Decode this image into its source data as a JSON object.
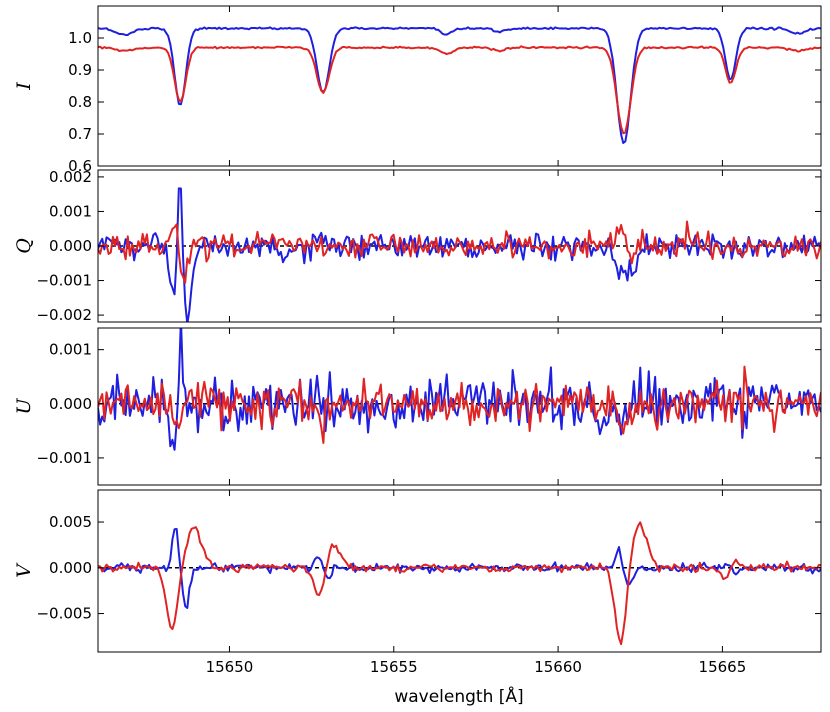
{
  "chart_data": {
    "type": "line",
    "xlabel": "wavelength [Å]",
    "xlim": [
      15646.0,
      15668.0
    ],
    "xticks": [
      15650,
      15655,
      15660,
      15665
    ],
    "xtick_labels": [
      "15650",
      "15655",
      "15660",
      "15665"
    ],
    "series_colors": {
      "blue": "#1f1fdf",
      "red": "#e02424"
    },
    "line_width": 2.0,
    "reference_line": {
      "y": 0,
      "style": "dashed",
      "color": "#000000"
    },
    "panels": [
      {
        "key": "I",
        "ylabel": "I",
        "ylim": [
          0.6,
          1.1
        ],
        "yticks": [
          0.6,
          0.7,
          0.8,
          0.9,
          1.0
        ],
        "ytick_labels": [
          "0.6",
          "0.7",
          "0.8",
          "0.9",
          "1.0"
        ],
        "zero_line": false,
        "continuum": {
          "blue": 1.03,
          "red": 0.97
        },
        "lines": [
          {
            "center": 15648.5,
            "width": 0.17,
            "depth_blue": 0.24,
            "depth_red": 0.17
          },
          {
            "center": 15652.85,
            "width": 0.19,
            "depth_blue": 0.2,
            "depth_red": 0.14
          },
          {
            "center": 15662.0,
            "width": 0.21,
            "depth_blue": 0.36,
            "depth_red": 0.27
          },
          {
            "center": 15665.25,
            "width": 0.16,
            "depth_blue": 0.16,
            "depth_red": 0.11
          },
          {
            "center": 15646.8,
            "width": 0.25,
            "depth_blue": 0.02,
            "depth_red": 0.01
          },
          {
            "center": 15656.6,
            "width": 0.18,
            "depth_blue": 0.02,
            "depth_red": 0.02
          },
          {
            "center": 15658.2,
            "width": 0.2,
            "depth_blue": 0.01,
            "depth_red": 0.01
          },
          {
            "center": 15667.3,
            "width": 0.25,
            "depth_blue": 0.015,
            "depth_red": 0.01
          }
        ],
        "noise_blue": 0.0015,
        "noise_red": 0.0015
      },
      {
        "key": "Q",
        "ylabel": "Q",
        "ylim": [
          -0.0022,
          0.0022
        ],
        "yticks": [
          -0.002,
          -0.001,
          0.0,
          0.001,
          0.002
        ],
        "ytick_labels": [
          "−0.002",
          "−0.001",
          "0.000",
          "0.001",
          "0.002"
        ],
        "zero_line": true,
        "features_blue": [
          {
            "center": 15648.5,
            "width": 0.06,
            "amp": 0.0028
          },
          {
            "center": 15648.3,
            "width": 0.12,
            "amp": -0.0015
          },
          {
            "center": 15648.72,
            "width": 0.1,
            "amp": -0.0021
          },
          {
            "center": 15662.1,
            "width": 0.25,
            "amp": -0.0008
          },
          {
            "center": 15651.8,
            "width": 0.3,
            "amp": -0.0003
          }
        ],
        "features_red": [
          {
            "center": 15648.35,
            "width": 0.1,
            "amp": 0.0008
          },
          {
            "center": 15648.6,
            "width": 0.12,
            "amp": -0.0009
          },
          {
            "center": 15661.95,
            "width": 0.12,
            "amp": 0.0006
          },
          {
            "center": 15662.2,
            "width": 0.15,
            "amp": -0.0005
          }
        ],
        "noise_blue": 0.00018,
        "noise_red": 0.00017
      },
      {
        "key": "U",
        "ylabel": "U",
        "ylim": [
          -0.0015,
          0.0014
        ],
        "yticks": [
          -0.001,
          0.0,
          0.001
        ],
        "ytick_labels": [
          "−0.001",
          "0.000",
          "0.001"
        ],
        "zero_line": true,
        "features_blue": [
          {
            "center": 15648.52,
            "width": 0.05,
            "amp": 0.0016
          },
          {
            "center": 15648.3,
            "width": 0.12,
            "amp": -0.001
          },
          {
            "center": 15661.6,
            "width": 0.25,
            "amp": -0.0005
          },
          {
            "center": 15662.5,
            "width": 0.2,
            "amp": 0.0002
          }
        ],
        "features_red": [
          {
            "center": 15648.4,
            "width": 0.1,
            "amp": -0.0006
          },
          {
            "center": 15652.8,
            "width": 0.12,
            "amp": -0.0003
          },
          {
            "center": 15662.0,
            "width": 0.15,
            "amp": -0.0004
          }
        ],
        "noise_blue": 0.00024,
        "noise_red": 0.0002
      },
      {
        "key": "V",
        "ylabel": "V",
        "ylim": [
          -0.0092,
          0.0085
        ],
        "yticks": [
          -0.005,
          0.0,
          0.005
        ],
        "ytick_labels": [
          "−0.005",
          "0.000",
          "0.005"
        ],
        "zero_line": true,
        "features_blue": [
          {
            "center": 15648.35,
            "width": 0.09,
            "amp": 0.0045
          },
          {
            "center": 15648.68,
            "width": 0.1,
            "amp": -0.0045
          },
          {
            "center": 15652.7,
            "width": 0.1,
            "amp": 0.0012
          },
          {
            "center": 15653.0,
            "width": 0.1,
            "amp": -0.0012
          },
          {
            "center": 15661.85,
            "width": 0.12,
            "amp": 0.0018
          },
          {
            "center": 15662.15,
            "width": 0.12,
            "amp": -0.0018
          },
          {
            "center": 15665.2,
            "width": 0.12,
            "amp": 0.0006
          },
          {
            "center": 15665.4,
            "width": 0.12,
            "amp": -0.0005
          }
        ],
        "features_red": [
          {
            "center": 15648.25,
            "width": 0.17,
            "amp": -0.0068
          },
          {
            "center": 15648.92,
            "width": 0.22,
            "amp": 0.0044
          },
          {
            "center": 15652.72,
            "width": 0.14,
            "amp": -0.0033
          },
          {
            "center": 15653.2,
            "width": 0.18,
            "amp": 0.0024
          },
          {
            "center": 15661.9,
            "width": 0.16,
            "amp": -0.0082
          },
          {
            "center": 15662.48,
            "width": 0.22,
            "amp": 0.0046
          },
          {
            "center": 15665.05,
            "width": 0.13,
            "amp": -0.0012
          },
          {
            "center": 15665.45,
            "width": 0.15,
            "amp": 0.0007
          }
        ],
        "noise_blue": 0.00022,
        "noise_red": 0.00022
      }
    ]
  }
}
